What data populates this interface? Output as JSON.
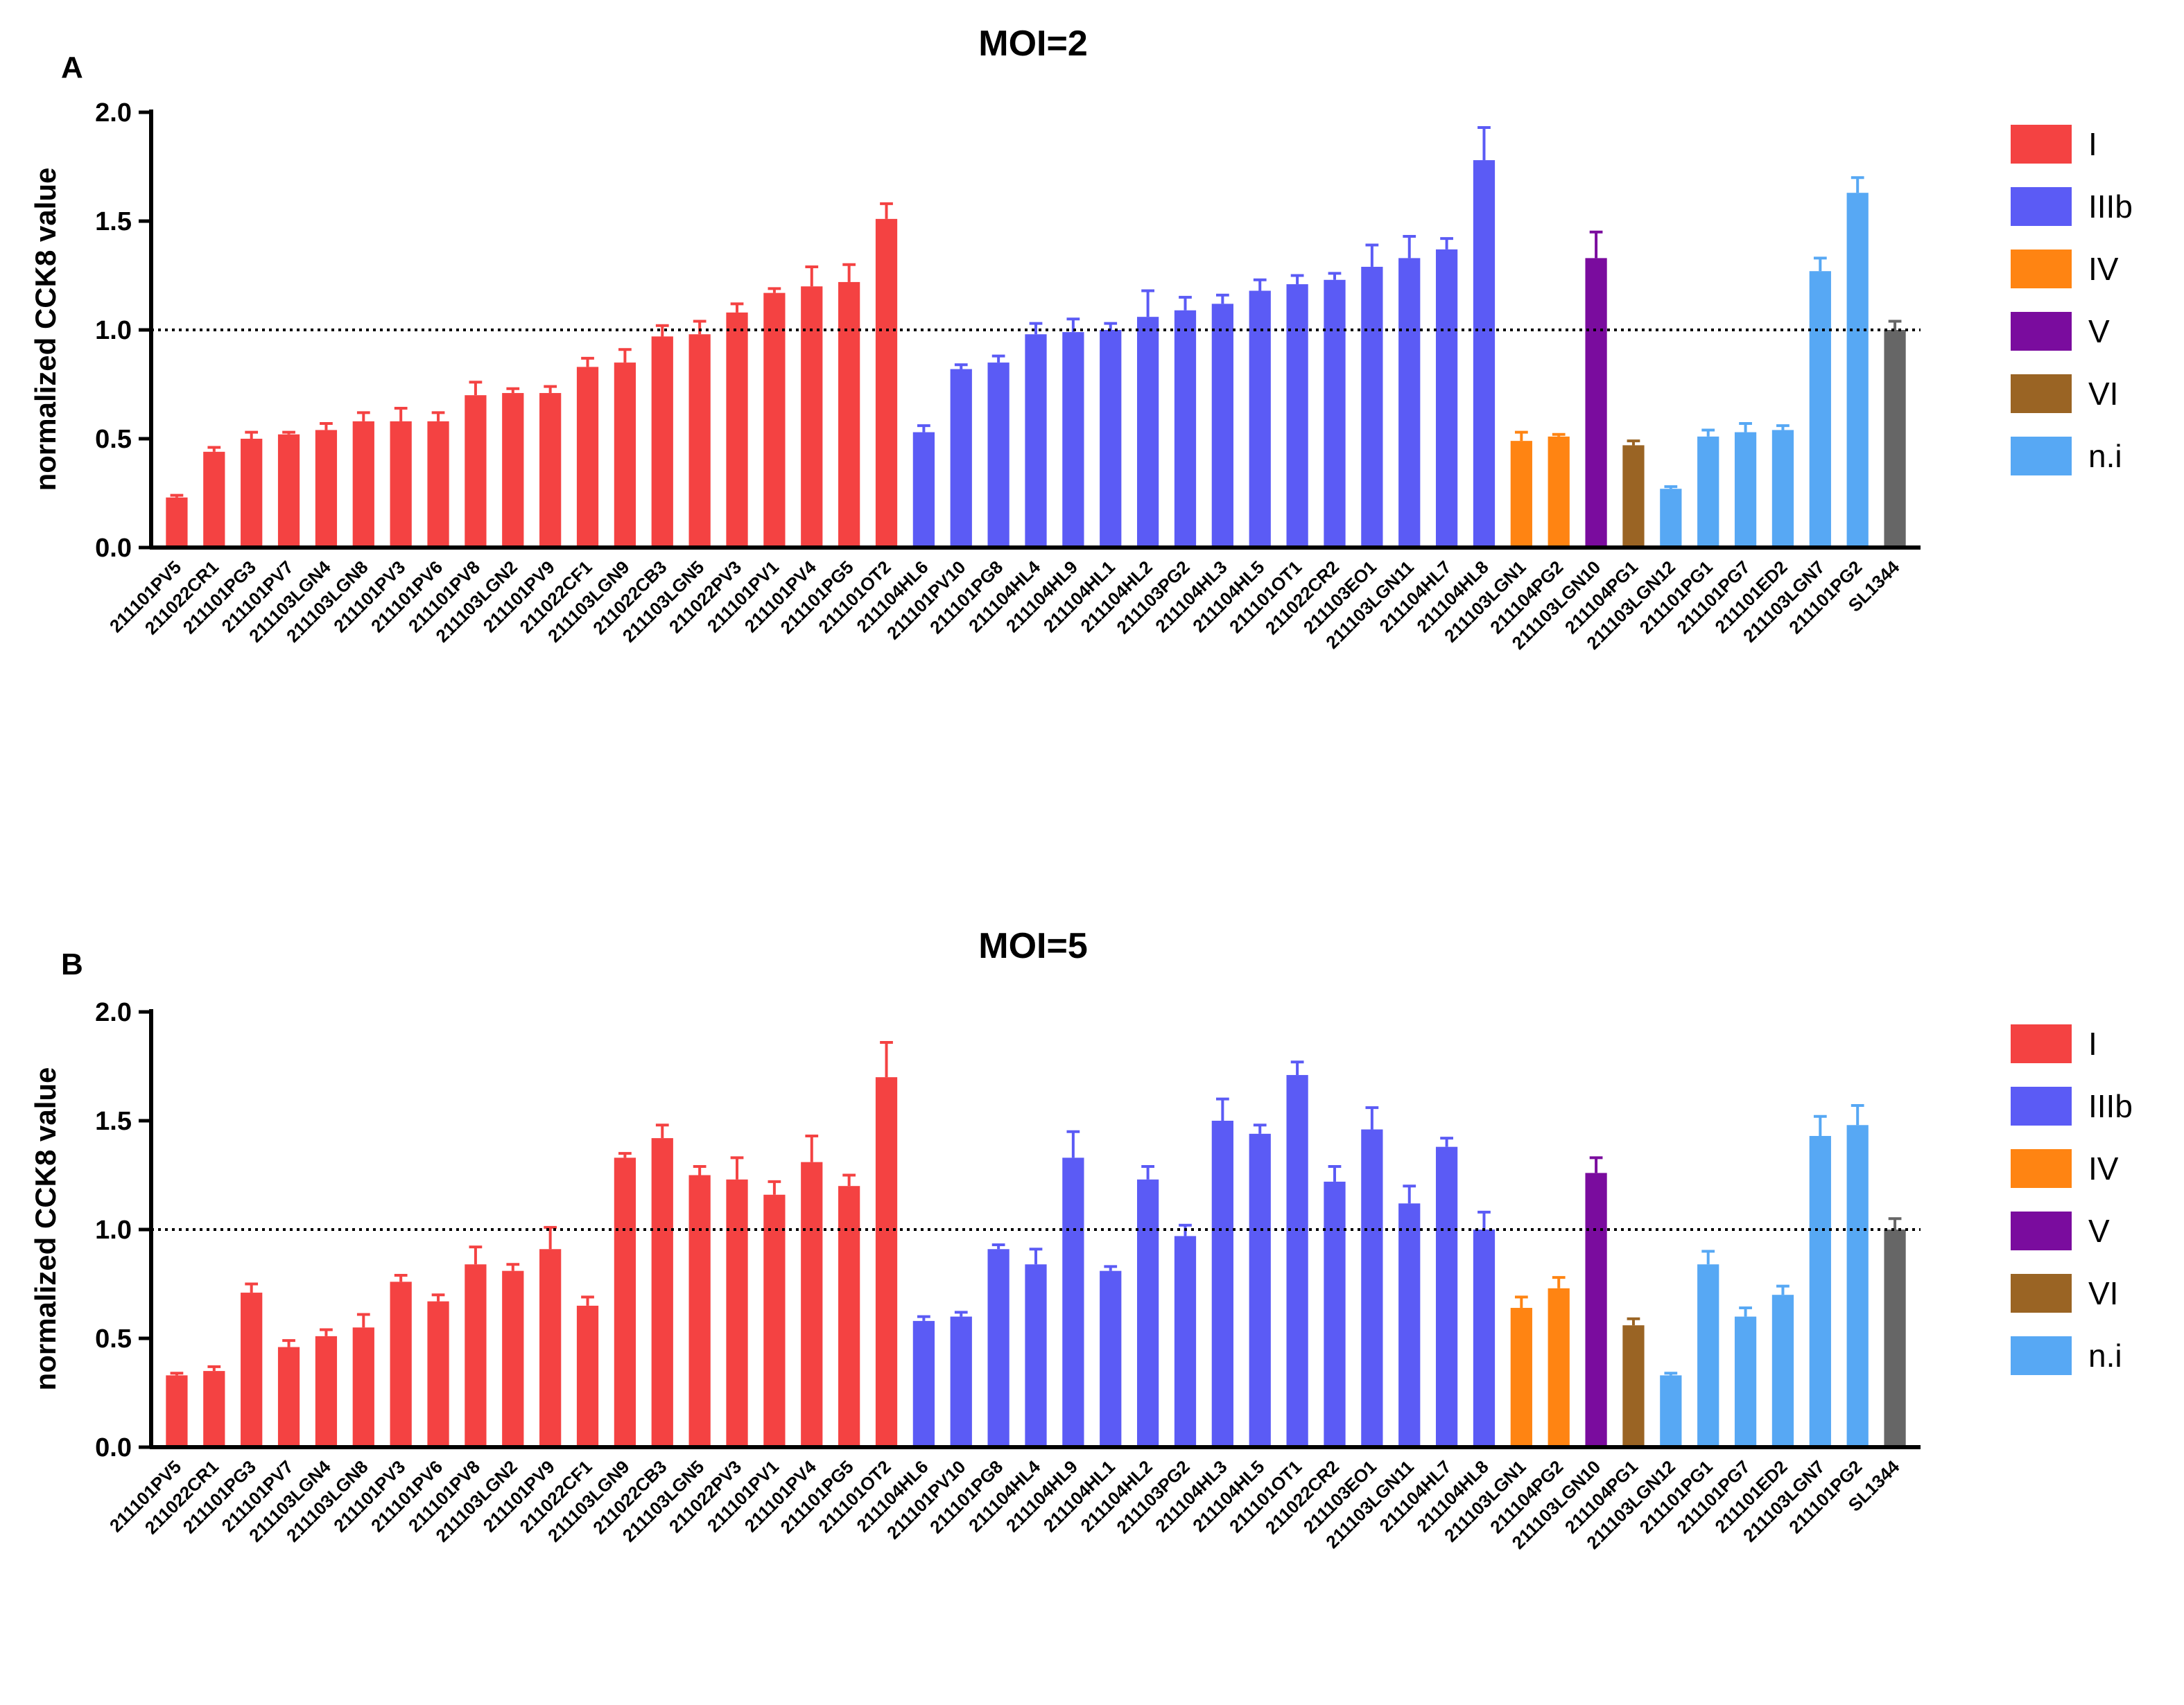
{
  "colors": {
    "I": "#f44242",
    "IIIb": "#5b5bf5",
    "IV": "#ff8412",
    "V": "#7a0c9e",
    "VI": "#9a6424",
    "n.i": "#57a8f4",
    "ref": "#666666"
  },
  "legend": [
    "I",
    "IIIb",
    "IV",
    "V",
    "VI",
    "n.i"
  ],
  "chart_data": [
    {
      "type": "bar",
      "panel": "A",
      "title": "MOI=2",
      "xlabel": "",
      "ylabel": "normalized CCK8 value",
      "ylim": [
        0,
        2.0
      ],
      "yticks": [
        "0.0",
        "0.5",
        "1.0",
        "1.5",
        "2.0"
      ],
      "reference_line": 1.0,
      "categories": [
        "211101PV5",
        "211022CR1",
        "211101PG3",
        "211101PV7",
        "211103LGN4",
        "211103LGN8",
        "211101PV3",
        "211101PV6",
        "211101PV8",
        "211103LGN2",
        "211101PV9",
        "211022CF1",
        "211103LGN9",
        "211022CB3",
        "211103LGN5",
        "211022PV3",
        "211101PV1",
        "211101PV4",
        "211101PG5",
        "211101OT2",
        "211104HL6",
        "211101PV10",
        "211101PG8",
        "211104HL4",
        "211104HL9",
        "211104HL1",
        "211104HL2",
        "211103PG2",
        "211104HL3",
        "211104HL5",
        "211101OT1",
        "211022CR2",
        "211103EO1",
        "211103LGN11",
        "211104HL7",
        "211104HL8",
        "211103LGN1",
        "211104PG2",
        "211103LGN10",
        "211104PG1",
        "211103LGN12",
        "211101PG1",
        "211101PG7",
        "211101ED2",
        "211103LGN7",
        "211101PG2",
        "SL1344"
      ],
      "groups": [
        "I",
        "I",
        "I",
        "I",
        "I",
        "I",
        "I",
        "I",
        "I",
        "I",
        "I",
        "I",
        "I",
        "I",
        "I",
        "I",
        "I",
        "I",
        "I",
        "I",
        "IIIb",
        "IIIb",
        "IIIb",
        "IIIb",
        "IIIb",
        "IIIb",
        "IIIb",
        "IIIb",
        "IIIb",
        "IIIb",
        "IIIb",
        "IIIb",
        "IIIb",
        "IIIb",
        "IIIb",
        "IIIb",
        "IV",
        "IV",
        "V",
        "VI",
        "n.i",
        "n.i",
        "n.i",
        "n.i",
        "n.i",
        "n.i",
        "ref"
      ],
      "values": [
        0.23,
        0.44,
        0.5,
        0.52,
        0.54,
        0.58,
        0.58,
        0.58,
        0.7,
        0.71,
        0.71,
        0.83,
        0.85,
        0.97,
        0.98,
        1.08,
        1.17,
        1.2,
        1.22,
        1.51,
        0.53,
        0.82,
        0.85,
        0.98,
        0.99,
        1.0,
        1.06,
        1.09,
        1.12,
        1.18,
        1.21,
        1.23,
        1.29,
        1.33,
        1.37,
        1.78,
        0.49,
        0.51,
        1.33,
        0.47,
        0.27,
        0.51,
        0.53,
        0.54,
        1.27,
        1.63,
        1.0
      ],
      "errors": [
        0.01,
        0.02,
        0.03,
        0.01,
        0.03,
        0.04,
        0.06,
        0.04,
        0.06,
        0.02,
        0.03,
        0.04,
        0.06,
        0.05,
        0.06,
        0.04,
        0.02,
        0.09,
        0.08,
        0.07,
        0.03,
        0.02,
        0.03,
        0.05,
        0.06,
        0.03,
        0.12,
        0.06,
        0.04,
        0.05,
        0.04,
        0.03,
        0.1,
        0.1,
        0.05,
        0.15,
        0.04,
        0.01,
        0.12,
        0.02,
        0.01,
        0.03,
        0.04,
        0.02,
        0.06,
        0.07,
        0.04
      ]
    },
    {
      "type": "bar",
      "panel": "B",
      "title": "MOI=5",
      "xlabel": "",
      "ylabel": "normalized CCK8 value",
      "ylim": [
        0,
        2.0
      ],
      "yticks": [
        "0.0",
        "0.5",
        "1.0",
        "1.5",
        "2.0"
      ],
      "reference_line": 1.0,
      "categories": [
        "211101PV5",
        "211022CR1",
        "211101PG3",
        "211101PV7",
        "211103LGN4",
        "211103LGN8",
        "211101PV3",
        "211101PV6",
        "211101PV8",
        "211103LGN2",
        "211101PV9",
        "211022CF1",
        "211103LGN9",
        "211022CB3",
        "211103LGN5",
        "211022PV3",
        "211101PV1",
        "211101PV4",
        "211101PG5",
        "211101OT2",
        "211104HL6",
        "211101PV10",
        "211101PG8",
        "211104HL4",
        "211104HL9",
        "211104HL1",
        "211104HL2",
        "211103PG2",
        "211104HL3",
        "211104HL5",
        "211101OT1",
        "211022CR2",
        "211103EO1",
        "211103LGN11",
        "211104HL7",
        "211104HL8",
        "211103LGN1",
        "211104PG2",
        "211103LGN10",
        "211104PG1",
        "211103LGN12",
        "211101PG1",
        "211101PG7",
        "211101ED2",
        "211103LGN7",
        "211101PG2",
        "SL1344"
      ],
      "groups": [
        "I",
        "I",
        "I",
        "I",
        "I",
        "I",
        "I",
        "I",
        "I",
        "I",
        "I",
        "I",
        "I",
        "I",
        "I",
        "I",
        "I",
        "I",
        "I",
        "I",
        "IIIb",
        "IIIb",
        "IIIb",
        "IIIb",
        "IIIb",
        "IIIb",
        "IIIb",
        "IIIb",
        "IIIb",
        "IIIb",
        "IIIb",
        "IIIb",
        "IIIb",
        "IIIb",
        "IIIb",
        "IIIb",
        "IV",
        "IV",
        "V",
        "VI",
        "n.i",
        "n.i",
        "n.i",
        "n.i",
        "n.i",
        "n.i",
        "ref"
      ],
      "values": [
        0.33,
        0.35,
        0.71,
        0.46,
        0.51,
        0.55,
        0.76,
        0.67,
        0.84,
        0.81,
        0.91,
        0.65,
        1.33,
        1.42,
        1.25,
        1.23,
        1.16,
        1.31,
        1.2,
        1.7,
        0.58,
        0.6,
        0.91,
        0.84,
        1.33,
        0.81,
        1.23,
        0.97,
        1.5,
        1.44,
        1.71,
        1.22,
        1.46,
        1.12,
        1.38,
        1.0,
        0.64,
        0.73,
        1.26,
        0.56,
        0.33,
        0.84,
        0.6,
        0.7,
        1.43,
        1.48,
        1.0
      ],
      "errors": [
        0.01,
        0.02,
        0.04,
        0.03,
        0.03,
        0.06,
        0.03,
        0.03,
        0.08,
        0.03,
        0.1,
        0.04,
        0.02,
        0.06,
        0.04,
        0.1,
        0.06,
        0.12,
        0.05,
        0.16,
        0.02,
        0.02,
        0.02,
        0.07,
        0.12,
        0.02,
        0.06,
        0.05,
        0.1,
        0.04,
        0.06,
        0.07,
        0.1,
        0.08,
        0.04,
        0.08,
        0.05,
        0.05,
        0.07,
        0.03,
        0.01,
        0.06,
        0.04,
        0.04,
        0.09,
        0.09,
        0.05
      ]
    }
  ]
}
